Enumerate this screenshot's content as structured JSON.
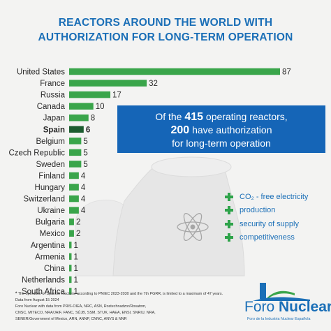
{
  "title": {
    "line1": "REACTORS AROUND THE WORLD WITH",
    "line2": "AUTHORIZATION FOR LONG-TERM OPERATION"
  },
  "chart_data": {
    "type": "bar",
    "orientation": "horizontal",
    "categories": [
      "United States",
      "France",
      "Russia",
      "Canada",
      "Japan",
      "Spain",
      "Belgium",
      "Czech Republic",
      "Sweden",
      "Finland",
      "Hungary",
      "Switzerland",
      "Ukraine",
      "Bulgaria",
      "Mexico",
      "Argentina",
      "Armenia",
      "China",
      "Netherlands",
      "South Africa"
    ],
    "values": [
      87,
      32,
      17,
      10,
      8,
      6,
      5,
      5,
      5,
      4,
      4,
      4,
      4,
      2,
      2,
      1,
      1,
      1,
      1,
      1
    ],
    "highlight": "Spain",
    "highlight_suffix": "*",
    "colors": {
      "main": "#3aa54b",
      "highlight": "#1c5c2f"
    },
    "grid": false,
    "legend": "none"
  },
  "info_box": {
    "line1_prefix": "Of the ",
    "line1_number": "415",
    "line1_suffix": " operating reactors,",
    "line2_number": "200",
    "line2_suffix": " have authorization",
    "line3": "for long-term operation"
  },
  "benefits": [
    {
      "label": "CO₂ - free electricity",
      "icon": "plus-icon"
    },
    {
      "label": "production",
      "icon": "plus-icon"
    },
    {
      "label": "security of supply",
      "icon": "plus-icon"
    },
    {
      "label": "competitiveness",
      "icon": "plus-icon"
    }
  ],
  "footnote": {
    "star": "*",
    "note": "The operation of Spanish reactors, according to PNIEC 2023-2030 and the 7th PGRR, is limited to a maximum of 47 years.",
    "date": "Data from August 15  2024",
    "source1": "Foro Nuclear with data from PRIS-OIEA, NRC, ASN, Rostechnadzor/Rosatom,",
    "source2": "CNSC, MITECO, NRA/JAIF, FANC, SÚJB, SSM, STUK, HAEA, ENSI, SNRIU, NRA,",
    "source3": "SENER/Government of Mexico, ARN, ANNP, CNNC, ANVS & NNR"
  },
  "logo": {
    "name_part1": "Foro ",
    "name_part2": "Nuclear",
    "subtitle": "Foro de la Industria Nuclear Española"
  },
  "palette": {
    "title_blue": "#1b6fb7",
    "box_blue": "#1565b7",
    "bar_green": "#3aa54b",
    "plus_green": "#2ea34a",
    "background": "#f3f3f2"
  }
}
